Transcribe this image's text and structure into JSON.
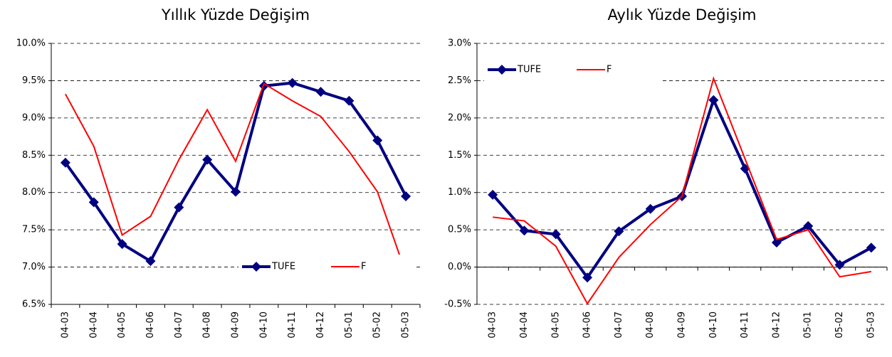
{
  "chart_data": [
    {
      "type": "line",
      "title": "Yıllık Yüzde Değişim",
      "categories": [
        "04-03",
        "04-04",
        "04-05",
        "04-06",
        "04-07",
        "04-08",
        "04-09",
        "04-10",
        "04-11",
        "04-12",
        "05-01",
        "05-02",
        "05-03"
      ],
      "series": [
        {
          "name": "TUFE",
          "color": "#000080",
          "values": [
            8.4,
            7.87,
            7.31,
            7.08,
            7.8,
            8.44,
            8.01,
            9.43,
            9.47,
            9.35,
            9.23,
            8.7,
            7.95
          ]
        },
        {
          "name": "F",
          "color": "#ff0000",
          "values": [
            9.32,
            8.62,
            7.43,
            7.68,
            8.44,
            9.11,
            8.42,
            9.46,
            9.23,
            9.02,
            8.55,
            8.01,
            6.92
          ]
        }
      ],
      "ylim": [
        6.5,
        10.0
      ],
      "yticks": [
        {
          "value": 6.5,
          "label": "6.5%"
        },
        {
          "value": 7.0,
          "label": "7.0%"
        },
        {
          "value": 7.5,
          "label": "7.5%"
        },
        {
          "value": 8.0,
          "label": "8.0%"
        },
        {
          "value": 8.5,
          "label": "8.5%"
        },
        {
          "value": 9.0,
          "label": "9.0%"
        },
        {
          "value": 9.5,
          "label": "9.5%"
        },
        {
          "value": 10.0,
          "label": "10.0%"
        }
      ],
      "grid": true,
      "legend_position": "lower right"
    },
    {
      "type": "line",
      "title": "Aylık Yüzde Değişim",
      "categories": [
        "04-03",
        "04-04",
        "04-05",
        "04-06",
        "04-07",
        "04-08",
        "04-09",
        "04-10",
        "04-11",
        "04-12",
        "05-01",
        "05-02",
        "05-03"
      ],
      "series": [
        {
          "name": "TUFE",
          "color": "#000080",
          "values": [
            0.97,
            0.49,
            0.44,
            -0.14,
            0.48,
            0.78,
            0.95,
            2.24,
            1.32,
            0.33,
            0.55,
            0.03,
            0.26
          ]
        },
        {
          "name": "F",
          "color": "#ff0000",
          "values": [
            0.67,
            0.62,
            0.28,
            -0.49,
            0.13,
            0.57,
            0.95,
            2.53,
            1.45,
            0.37,
            0.5,
            -0.13,
            -0.06
          ]
        }
      ],
      "ylim": [
        -0.5,
        3.0
      ],
      "yticks": [
        {
          "value": -0.5,
          "label": "-0.5%"
        },
        {
          "value": 0.0,
          "label": "0.0%"
        },
        {
          "value": 0.5,
          "label": "0.5%"
        },
        {
          "value": 1.0,
          "label": "1.0%"
        },
        {
          "value": 1.5,
          "label": "1.5%"
        },
        {
          "value": 2.0,
          "label": "2.0%"
        },
        {
          "value": 2.5,
          "label": "2.5%"
        },
        {
          "value": 3.0,
          "label": "3.0%"
        }
      ],
      "grid": true,
      "legend_position": "upper left"
    }
  ]
}
